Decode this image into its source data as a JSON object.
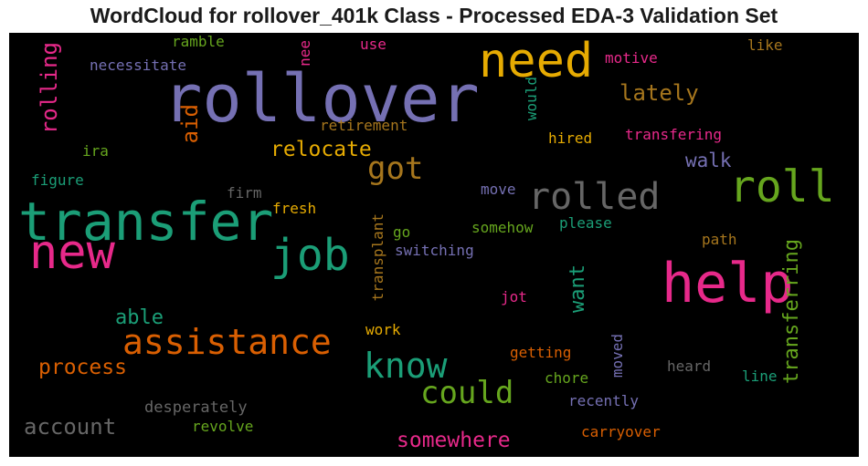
{
  "title": "WordCloud for rollover_401k Class - Processed EDA-3 Validation Set",
  "colors": {
    "purple": "#7570b3",
    "green": "#1b9e77",
    "orange": "#d95f02",
    "pink": "#e7298a",
    "lime": "#66a61e",
    "gold": "#e6ab02",
    "brown": "#a6761d",
    "gray": "#666666"
  },
  "words": [
    {
      "text": "rollover",
      "color": "purple"
    },
    {
      "text": "transfer",
      "color": "green"
    },
    {
      "text": "help",
      "color": "pink"
    },
    {
      "text": "need",
      "color": "gold"
    },
    {
      "text": "new",
      "color": "pink"
    },
    {
      "text": "roll",
      "color": "lime"
    },
    {
      "text": "rolled",
      "color": "gray"
    },
    {
      "text": "job",
      "color": "green"
    },
    {
      "text": "assistance",
      "color": "orange"
    },
    {
      "text": "know",
      "color": "green"
    },
    {
      "text": "could",
      "color": "lime"
    },
    {
      "text": "got",
      "color": "brown"
    },
    {
      "text": "transferring",
      "color": "lime"
    },
    {
      "text": "rolling",
      "color": "pink"
    },
    {
      "text": "somewhere",
      "color": "pink"
    },
    {
      "text": "account",
      "color": "gray"
    },
    {
      "text": "process",
      "color": "orange"
    },
    {
      "text": "relocate",
      "color": "gold"
    },
    {
      "text": "lately",
      "color": "brown"
    },
    {
      "text": "aid",
      "color": "orange"
    },
    {
      "text": "able",
      "color": "green"
    },
    {
      "text": "want",
      "color": "green"
    },
    {
      "text": "walk",
      "color": "purple"
    },
    {
      "text": "transplant",
      "color": "brown"
    },
    {
      "text": "desperately",
      "color": "gray"
    },
    {
      "text": "revolve",
      "color": "lime"
    },
    {
      "text": "ramble",
      "color": "lime"
    },
    {
      "text": "necessitate",
      "color": "purple"
    },
    {
      "text": "nee",
      "color": "pink"
    },
    {
      "text": "use",
      "color": "pink"
    },
    {
      "text": "motive",
      "color": "pink"
    },
    {
      "text": "like",
      "color": "brown"
    },
    {
      "text": "would",
      "color": "green"
    },
    {
      "text": "retirement",
      "color": "brown"
    },
    {
      "text": "ira",
      "color": "lime"
    },
    {
      "text": "hired",
      "color": "gold"
    },
    {
      "text": "transfering",
      "color": "pink"
    },
    {
      "text": "figure",
      "color": "green"
    },
    {
      "text": "firm",
      "color": "gray"
    },
    {
      "text": "move",
      "color": "purple"
    },
    {
      "text": "fresh",
      "color": "gold"
    },
    {
      "text": "go",
      "color": "lime"
    },
    {
      "text": "somehow",
      "color": "lime"
    },
    {
      "text": "please",
      "color": "green"
    },
    {
      "text": "switching",
      "color": "purple"
    },
    {
      "text": "path",
      "color": "brown"
    },
    {
      "text": "jot",
      "color": "pink"
    },
    {
      "text": "work",
      "color": "gold"
    },
    {
      "text": "getting",
      "color": "orange"
    },
    {
      "text": "moved",
      "color": "purple"
    },
    {
      "text": "heard",
      "color": "gray"
    },
    {
      "text": "chore",
      "color": "lime"
    },
    {
      "text": "line",
      "color": "green"
    },
    {
      "text": "recently",
      "color": "purple"
    },
    {
      "text": "carryover",
      "color": "orange"
    }
  ]
}
